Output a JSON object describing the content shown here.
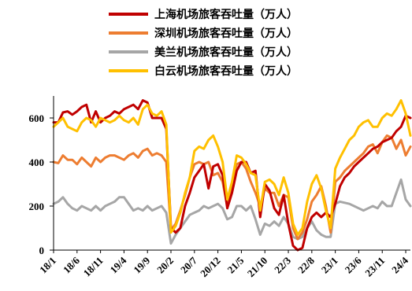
{
  "chart_data": {
    "type": "line",
    "title": "",
    "xlabel": "",
    "ylabel": "",
    "ylim": [
      0,
      700
    ],
    "yticks": [
      0,
      200,
      400,
      600
    ],
    "xtick_labels": [
      "18/1",
      "18/6",
      "18/11",
      "19/4",
      "19/9",
      "20/2",
      "20/7",
      "20/12",
      "21/5",
      "21/10",
      "22/3",
      "22/8",
      "23/1",
      "23/6",
      "23/11",
      "24/4"
    ],
    "legend_position": "top-center",
    "grid": false,
    "x": [
      "18/1",
      "18/2",
      "18/3",
      "18/4",
      "18/5",
      "18/6",
      "18/7",
      "18/8",
      "18/9",
      "18/10",
      "18/11",
      "18/12",
      "19/1",
      "19/2",
      "19/3",
      "19/4",
      "19/5",
      "19/6",
      "19/7",
      "19/8",
      "19/9",
      "19/10",
      "19/11",
      "19/12",
      "20/1",
      "20/2",
      "20/3",
      "20/4",
      "20/5",
      "20/6",
      "20/7",
      "20/8",
      "20/9",
      "20/10",
      "20/11",
      "20/12",
      "21/1",
      "21/2",
      "21/3",
      "21/4",
      "21/5",
      "21/6",
      "21/7",
      "21/8",
      "21/9",
      "21/10",
      "21/11",
      "21/12",
      "22/1",
      "22/2",
      "22/3",
      "22/4",
      "22/5",
      "22/6",
      "22/7",
      "22/8",
      "22/9",
      "22/10",
      "22/11",
      "22/12",
      "23/1",
      "23/2",
      "23/3",
      "23/4",
      "23/5",
      "23/6",
      "23/7",
      "23/8",
      "23/9",
      "23/10",
      "23/11",
      "23/12",
      "24/1",
      "24/2",
      "24/3",
      "24/4",
      "24/5"
    ],
    "series": [
      {
        "name": "上海机场旅客吞吐量（万人）",
        "color": "#c00000",
        "values": [
          580,
          580,
          625,
          630,
          615,
          630,
          650,
          660,
          580,
          630,
          580,
          600,
          610,
          630,
          620,
          640,
          650,
          660,
          640,
          680,
          670,
          600,
          600,
          600,
          550,
          100,
          80,
          100,
          200,
          260,
          330,
          360,
          390,
          280,
          380,
          390,
          340,
          190,
          260,
          360,
          400,
          400,
          350,
          360,
          150,
          300,
          270,
          190,
          160,
          250,
          120,
          20,
          0,
          10,
          100,
          150,
          170,
          150,
          170,
          150,
          210,
          290,
          330,
          350,
          380,
          400,
          420,
          440,
          460,
          470,
          490,
          500,
          510,
          540,
          560,
          610,
          600
        ]
      },
      {
        "name": "深圳机场旅客吞吐量（万人）",
        "color": "#ed7d31",
        "values": [
          400,
          395,
          430,
          410,
          410,
          390,
          420,
          400,
          380,
          420,
          400,
          420,
          430,
          430,
          420,
          410,
          430,
          440,
          420,
          450,
          460,
          430,
          440,
          430,
          400,
          90,
          120,
          180,
          250,
          330,
          390,
          400,
          390,
          400,
          340,
          350,
          310,
          200,
          290,
          390,
          400,
          370,
          310,
          260,
          200,
          280,
          260,
          260,
          200,
          250,
          240,
          100,
          50,
          80,
          140,
          220,
          250,
          290,
          200,
          80,
          310,
          330,
          360,
          380,
          400,
          420,
          440,
          470,
          480,
          440,
          490,
          520,
          510,
          460,
          500,
          430,
          470
        ]
      },
      {
        "name": "美兰机场旅客吞吐量（万人）",
        "color": "#a6a6a6",
        "values": [
          210,
          220,
          240,
          210,
          190,
          180,
          200,
          190,
          180,
          200,
          180,
          200,
          210,
          220,
          240,
          240,
          210,
          180,
          190,
          180,
          200,
          180,
          190,
          200,
          170,
          30,
          70,
          100,
          130,
          160,
          170,
          180,
          200,
          190,
          200,
          210,
          190,
          140,
          150,
          200,
          200,
          180,
          200,
          140,
          70,
          120,
          110,
          130,
          110,
          150,
          120,
          60,
          50,
          60,
          100,
          130,
          90,
          70,
          60,
          60,
          210,
          220,
          215,
          210,
          200,
          190,
          180,
          190,
          200,
          190,
          220,
          200,
          200,
          260,
          320,
          230,
          200
        ]
      },
      {
        "name": "白云机场旅客吞吐量（万人）",
        "color": "#ffc000",
        "values": [
          560,
          580,
          600,
          560,
          550,
          540,
          580,
          600,
          590,
          560,
          600,
          590,
          580,
          590,
          610,
          590,
          580,
          600,
          570,
          640,
          660,
          620,
          610,
          630,
          570,
          80,
          110,
          170,
          260,
          330,
          450,
          470,
          460,
          500,
          520,
          470,
          400,
          230,
          310,
          430,
          420,
          390,
          350,
          340,
          180,
          310,
          320,
          300,
          250,
          330,
          260,
          120,
          70,
          100,
          220,
          300,
          340,
          280,
          180,
          100,
          370,
          420,
          460,
          500,
          520,
          560,
          580,
          590,
          560,
          560,
          600,
          620,
          610,
          640,
          680,
          620,
          520
        ]
      }
    ]
  }
}
